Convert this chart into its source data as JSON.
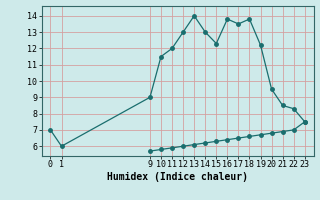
{
  "x_upper": [
    0,
    1,
    9,
    10,
    11,
    12,
    13,
    14,
    15,
    16,
    17,
    18,
    19,
    20,
    21,
    22,
    23
  ],
  "y_upper": [
    7,
    6,
    9,
    11.5,
    12,
    13,
    14,
    13,
    12.3,
    13.8,
    13.5,
    13.8,
    12.2,
    9.5,
    8.5,
    8.3,
    7.5
  ],
  "x_lower": [
    9,
    10,
    11,
    12,
    13,
    14,
    15,
    16,
    17,
    18,
    19,
    20,
    21,
    22,
    23
  ],
  "y_lower": [
    5.7,
    5.8,
    5.9,
    6.0,
    6.1,
    6.2,
    6.3,
    6.4,
    6.5,
    6.6,
    6.7,
    6.8,
    6.9,
    7.0,
    7.5
  ],
  "xlabel": "Humidex (Indice chaleur)",
  "bg_color": "#ceeaea",
  "line_color": "#1a6e6e",
  "grid_color": "#d4a0a0",
  "ylim": [
    5.4,
    14.6
  ],
  "xlim": [
    -0.8,
    23.8
  ],
  "yticks": [
    6,
    7,
    8,
    9,
    10,
    11,
    12,
    13,
    14
  ],
  "xticks": [
    0,
    1,
    9,
    10,
    11,
    12,
    13,
    14,
    15,
    16,
    17,
    18,
    19,
    20,
    21,
    22,
    23
  ],
  "tick_fontsize": 6.0,
  "xlabel_fontsize": 7.0
}
